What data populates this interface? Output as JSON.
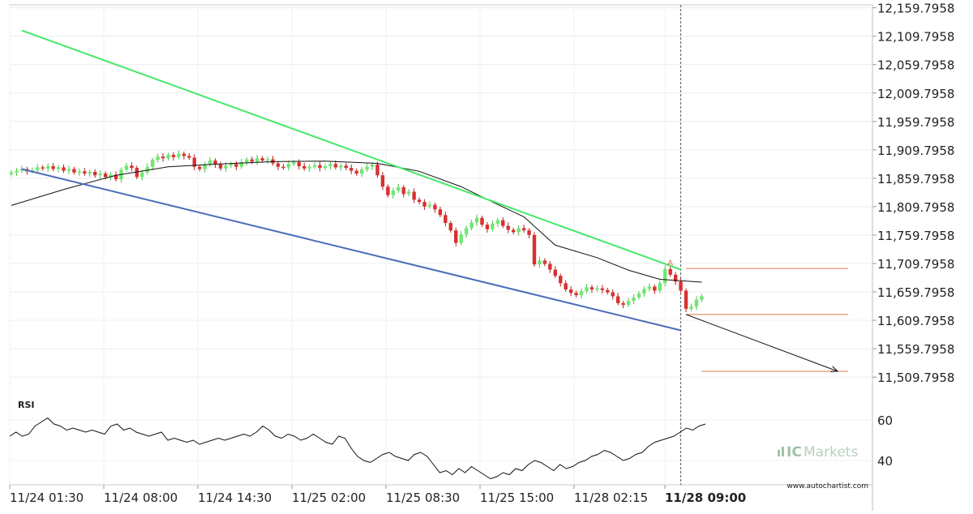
{
  "chart_data": [
    {
      "type": "candlestick",
      "panel": "price",
      "y_tick_labels": [
        "12,159.7958",
        "12,109.7958",
        "12,059.7958",
        "12,009.7958",
        "11,959.7958",
        "11,909.7958",
        "11,859.7958",
        "11,809.7958",
        "11,759.7958",
        "11,709.7958",
        "11,659.7958",
        "11,609.7958",
        "11,559.7958",
        "11,509.7958"
      ],
      "ylim": [
        11480,
        12165
      ],
      "x_tick_labels": [
        "11/24 01:30",
        "11/24 08:00",
        "11/24 14:30",
        "11/25 02:00",
        "11/25 08:30",
        "11/25 15:00",
        "11/28 02:15",
        "11/28 09:00"
      ],
      "highlighted_x_tick": "11/28 09:00",
      "grid": true,
      "colors": {
        "up": "#6ee86e",
        "down": "#d93030",
        "resistance": "#44e86a",
        "support": "#4a6db8",
        "moving_average": "#111111",
        "levels": "#e07a4a",
        "projection": "#111111"
      },
      "closes": [
        11870,
        11873,
        11876,
        11872,
        11874,
        11879,
        11877,
        11881,
        11876,
        11879,
        11873,
        11876,
        11870,
        11872,
        11868,
        11871,
        11865,
        11868,
        11862,
        11866,
        11858,
        11875,
        11882,
        11878,
        11862,
        11870,
        11880,
        11892,
        11898,
        11895,
        11901,
        11897,
        11903,
        11899,
        11896,
        11880,
        11876,
        11884,
        11891,
        11884,
        11877,
        11882,
        11885,
        11880,
        11888,
        11893,
        11889,
        11895,
        11891,
        11893,
        11886,
        11880,
        11879,
        11885,
        11888,
        11881,
        11877,
        11880,
        11883,
        11878,
        11881,
        11885,
        11879,
        11882,
        11878,
        11873,
        11868,
        11875,
        11880,
        11884,
        11865,
        11845,
        11830,
        11838,
        11844,
        11832,
        11836,
        11822,
        11818,
        11810,
        11813,
        11805,
        11795,
        11781,
        11768,
        11746,
        11761,
        11772,
        11782,
        11790,
        11778,
        11770,
        11780,
        11786,
        11776,
        11769,
        11765,
        11772,
        11768,
        11760,
        11708,
        11715,
        11709,
        11699,
        11688,
        11675,
        11664,
        11658,
        11654,
        11661,
        11668,
        11664,
        11666,
        11663,
        11659,
        11652,
        11640,
        11637,
        11644,
        11650,
        11657,
        11665,
        11669,
        11662,
        11675,
        11700,
        11690,
        11678,
        11662,
        11630,
        11634,
        11646,
        11652
      ],
      "moving_average": [
        {
          "i": 0,
          "y": 11812
        },
        {
          "i": 10,
          "y": 11840
        },
        {
          "i": 20,
          "y": 11865
        },
        {
          "i": 30,
          "y": 11880
        },
        {
          "i": 40,
          "y": 11885
        },
        {
          "i": 50,
          "y": 11889
        },
        {
          "i": 60,
          "y": 11890
        },
        {
          "i": 70,
          "y": 11886
        },
        {
          "i": 78,
          "y": 11872
        },
        {
          "i": 86,
          "y": 11845
        },
        {
          "i": 92,
          "y": 11818
        },
        {
          "i": 98,
          "y": 11792
        },
        {
          "i": 104,
          "y": 11742
        },
        {
          "i": 112,
          "y": 11720
        },
        {
          "i": 118,
          "y": 11698
        },
        {
          "i": 124,
          "y": 11682
        },
        {
          "i": 132,
          "y": 11677
        }
      ],
      "pattern_lines": [
        {
          "role": "resistance",
          "from": {
            "i": 2,
            "y": 12120
          },
          "to": {
            "i": 128,
            "y": 11699
          }
        },
        {
          "role": "support",
          "from": {
            "i": 2,
            "y": 11876
          },
          "to": {
            "i": 128,
            "y": 11592
          }
        }
      ],
      "level_lines": [
        {
          "y": 11701,
          "from_i": 129,
          "to_i": 160
        },
        {
          "y": 11620,
          "from_i": 129,
          "to_i": 160
        },
        {
          "y": 11520,
          "from_i": 132,
          "to_i": 160
        }
      ],
      "projection": {
        "from": {
          "i": 129,
          "y": 11620
        },
        "to": {
          "i": 158,
          "y": 11520
        }
      },
      "marker": {
        "text": "A",
        "i": 126,
        "y": 11706
      },
      "current_time_index": 128
    },
    {
      "type": "line",
      "panel": "indicator",
      "title": "RSI",
      "y_tick_labels": [
        "60",
        "40"
      ],
      "ylim": [
        28,
        72
      ],
      "values": [
        52,
        54,
        52,
        53,
        57,
        59,
        61,
        58,
        57,
        55,
        56,
        55,
        54,
        55,
        54,
        53,
        57,
        58,
        55,
        56,
        54,
        53,
        52,
        53,
        54,
        50,
        51,
        50,
        49,
        50,
        48,
        49,
        50,
        51,
        50,
        51,
        52,
        53,
        52,
        54,
        57,
        55,
        52,
        51,
        53,
        52,
        50,
        51,
        53,
        51,
        49,
        48,
        52,
        51,
        46,
        42,
        40,
        39,
        41,
        43,
        44,
        42,
        41,
        40,
        43,
        44,
        42,
        38,
        34,
        35,
        33,
        36,
        34,
        37,
        35,
        33,
        31,
        32,
        34,
        33,
        36,
        35,
        38,
        40,
        39,
        37,
        35,
        38,
        36,
        37,
        39,
        40,
        42,
        43,
        45,
        44,
        42,
        40,
        41,
        43,
        44,
        47,
        49,
        50,
        51,
        52,
        54,
        56,
        55,
        57,
        58
      ]
    }
  ],
  "branding": {
    "logo_prefix": "IC",
    "logo_suffix": "Markets",
    "site": "www.autochartist.com"
  }
}
